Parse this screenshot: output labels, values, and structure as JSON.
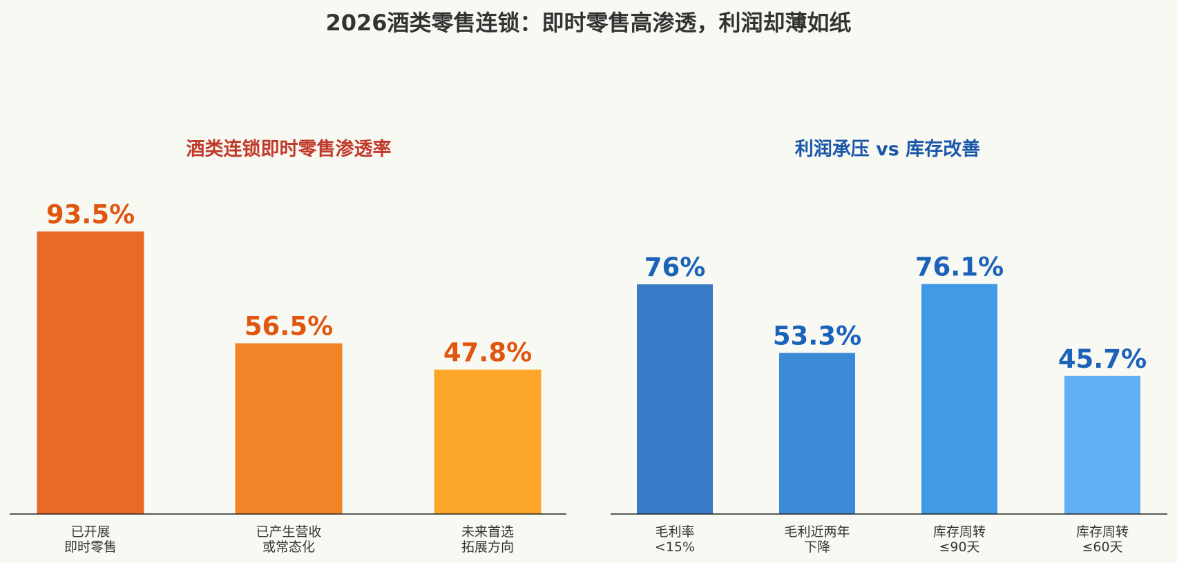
{
  "title": "2026酒类零售连锁：即时零售高渗透，利润却薄如纸",
  "chart_data": [
    {
      "type": "bar",
      "title": "酒类连锁即时零售渗透率",
      "categories": [
        [
          "已开展",
          "即时零售"
        ],
        [
          "已产生营收",
          "或常态化"
        ],
        [
          "未来首选",
          "拓展方向"
        ]
      ],
      "values": [
        93.5,
        56.5,
        47.8
      ],
      "value_labels": [
        "93.5%",
        "56.5%",
        "47.8%"
      ],
      "colors": [
        "#e96a26",
        "#f08427",
        "#fda72a"
      ],
      "label_color": "#e0560f",
      "title_color": "#c0392b",
      "ylim": [
        0,
        100
      ]
    },
    {
      "type": "bar",
      "title": "利润承压 vs 库存改善",
      "categories": [
        [
          "毛利率",
          "<15%"
        ],
        [
          "毛利近两年",
          "下降"
        ],
        [
          "库存周转",
          "≤90天"
        ],
        [
          "库存周转",
          "≤60天"
        ]
      ],
      "values": [
        76,
        53.3,
        76.1,
        45.7
      ],
      "value_labels": [
        "76%",
        "53.3%",
        "76.1%",
        "45.7%"
      ],
      "colors": [
        "#377bc9",
        "#3b8ad7",
        "#4299e6",
        "#5eb0f3"
      ],
      "label_color": "#1a63b8",
      "title_color": "#1a56a8",
      "ylim": [
        0,
        100
      ]
    }
  ]
}
